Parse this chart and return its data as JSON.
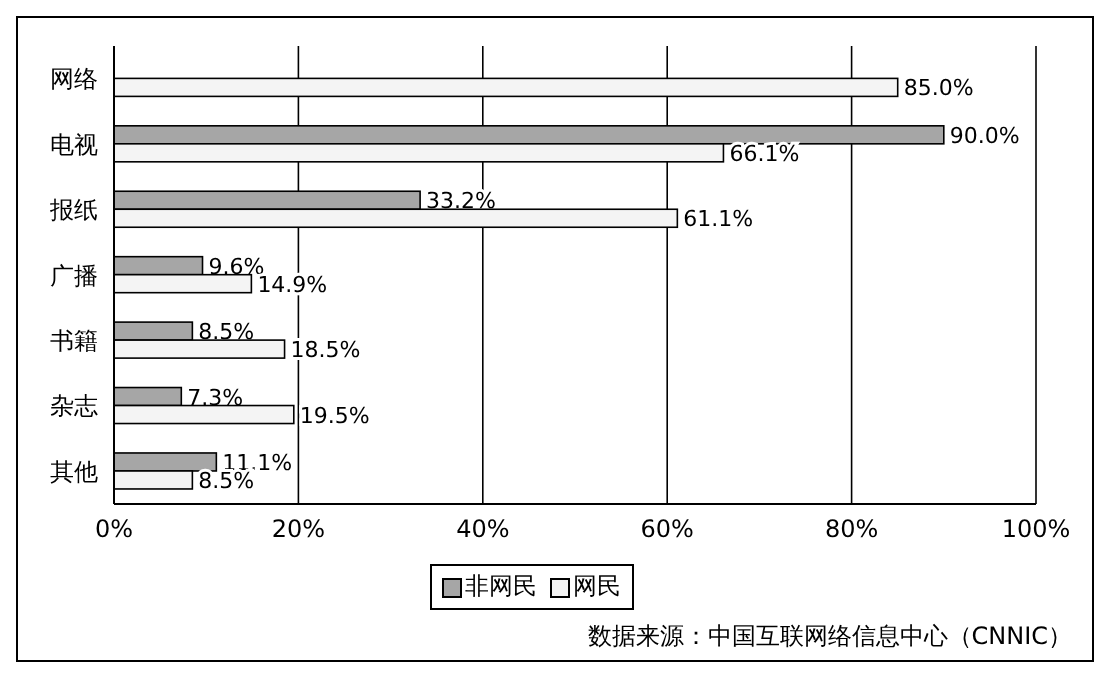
{
  "chart_data": {
    "type": "bar",
    "orientation": "horizontal",
    "categories": [
      "网络",
      "电视",
      "报纸",
      "广播",
      "书籍",
      "杂志",
      "其他"
    ],
    "series": [
      {
        "name": "非网民",
        "color": "#a6a6a6",
        "values": [
          null,
          90.0,
          33.2,
          9.6,
          8.5,
          7.3,
          11.1
        ],
        "value_labels": [
          null,
          "90.0%",
          "33.2%",
          "9.6%",
          "8.5%",
          "7.3%",
          "11.1%"
        ]
      },
      {
        "name": "网民",
        "color": "#f4f4f4",
        "values": [
          85.0,
          66.1,
          61.1,
          14.9,
          18.5,
          19.5,
          8.5
        ],
        "value_labels": [
          "85.0%",
          "66.1%",
          "61.1%",
          "14.9%",
          "18.5%",
          "19.5%",
          "8.5%"
        ]
      }
    ],
    "xlim": [
      0,
      100
    ],
    "xticks": [
      {
        "value": 0,
        "label": "0%"
      },
      {
        "value": 20,
        "label": "20%"
      },
      {
        "value": 40,
        "label": "40%"
      },
      {
        "value": 60,
        "label": "60%"
      },
      {
        "value": 80,
        "label": "80%"
      },
      {
        "value": 100,
        "label": "100%"
      }
    ],
    "grid": "x",
    "legend": "bottom",
    "annotations": [
      "数据来源：中国互联网络信息中心（CNNIC）"
    ]
  }
}
